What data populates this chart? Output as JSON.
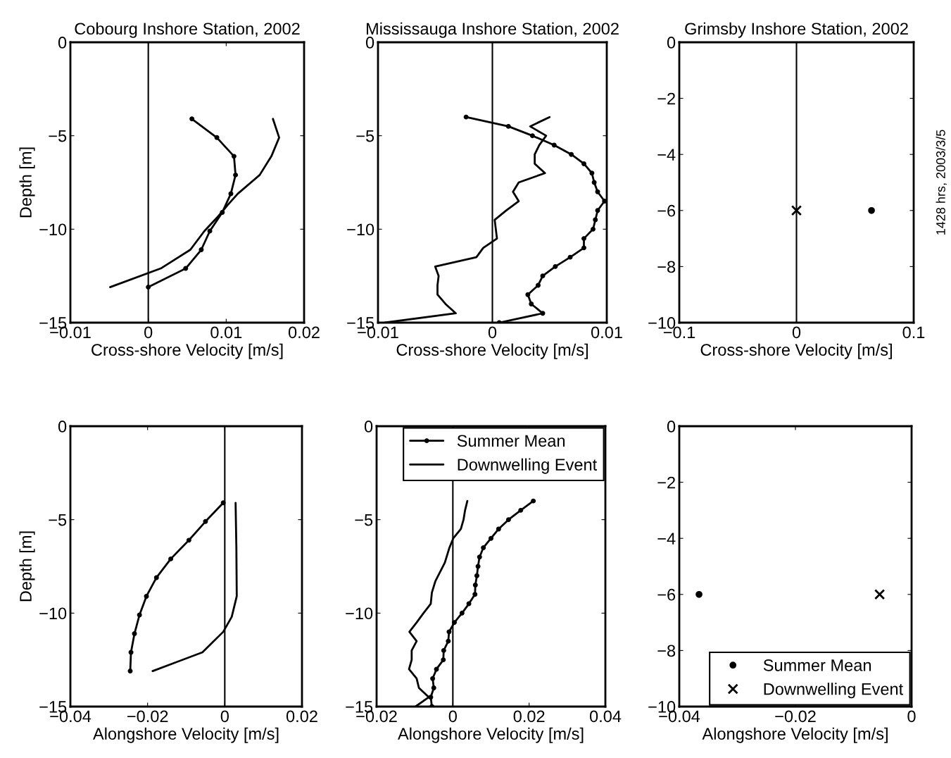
{
  "chart_data": [
    {
      "type": "line",
      "title": "Cobourg Inshore Station, 2002",
      "xlabel": "Cross-shore Velocity [m/s]",
      "ylabel": "Depth [m]",
      "xlim": [
        -0.01,
        0.02
      ],
      "xticks": [
        -0.01,
        0,
        0.01,
        0.02
      ],
      "ylim": [
        -15,
        0
      ],
      "yticks": [
        -15,
        -10,
        -5,
        0
      ],
      "ref_lines": [
        {
          "axis": "x",
          "value": 0,
          "color": "#000000"
        }
      ],
      "legend": false,
      "series": [
        {
          "color": "#000000",
          "marker": "circle",
          "x": [
            0.0056,
            0.0088,
            0.011,
            0.0112,
            0.0106,
            0.0095,
            0.0079,
            0.0068,
            0.0048,
            0.0
          ],
          "values": [
            -4.1,
            -5.1,
            -6.1,
            -7.1,
            -8.1,
            -9.1,
            -10.1,
            -11.1,
            -12.1,
            -13.1
          ]
        },
        {
          "color": "#000000",
          "marker": "none",
          "x": [
            0.016,
            0.0168,
            0.0158,
            0.0143,
            0.0115,
            0.0102,
            0.009,
            0.0072,
            0.0054,
            0.0016,
            -0.0049
          ],
          "values": [
            -4.1,
            -5.1,
            -6.1,
            -7.1,
            -8.1,
            -8.7,
            -9.3,
            -10.1,
            -11.1,
            -12.1,
            -13.1
          ]
        }
      ]
    },
    {
      "type": "line",
      "title": "Mississauga Inshore Station, 2002",
      "xlabel": "Cross-shore Velocity [m/s]",
      "xlim": [
        -0.01,
        0.01
      ],
      "xticks": [
        -0.01,
        0,
        0.01
      ],
      "ylim": [
        -15,
        0
      ],
      "yticks": [
        -15,
        -10,
        -5,
        0
      ],
      "ref_lines": [
        {
          "axis": "x",
          "value": 0,
          "color": "#000000"
        }
      ],
      "legend": false,
      "series": [
        {
          "color": "#000000",
          "marker": "circle",
          "x": [
            -0.0023,
            0.0014,
            0.0035,
            0.0054,
            0.0069,
            0.008,
            0.0087,
            0.0089,
            0.0092,
            0.0098,
            0.0092,
            0.009,
            0.0088,
            0.008,
            0.008,
            0.0068,
            0.0055,
            0.0044,
            0.004,
            0.0031,
            0.0034,
            0.0044,
            0.0006
          ],
          "values": [
            -4,
            -4.5,
            -5,
            -5.5,
            -6,
            -6.5,
            -7,
            -7.5,
            -8,
            -8.5,
            -9,
            -9.5,
            -10,
            -10.5,
            -11,
            -11.5,
            -12,
            -12.5,
            -13,
            -13.5,
            -14,
            -14.5,
            -15
          ]
        },
        {
          "color": "#000000",
          "marker": "none",
          "x": [
            0.005,
            0.0033,
            0.0047,
            0.0041,
            0.0037,
            0.0037,
            0.0046,
            0.0023,
            0.0018,
            0.0023,
            0.0012,
            0.0002,
            0.0003,
            0.0004,
            -0.0008,
            -0.0014,
            -0.005,
            -0.0047,
            -0.0048,
            -0.0048,
            -0.0041,
            -0.0032,
            -0.0094
          ],
          "values": [
            -4,
            -4.5,
            -5,
            -5.5,
            -6,
            -6.5,
            -7,
            -7.5,
            -8,
            -8.5,
            -9,
            -9.5,
            -10,
            -10.5,
            -11,
            -11.5,
            -12,
            -12.5,
            -13,
            -13.5,
            -14,
            -14.5,
            -15
          ]
        }
      ]
    },
    {
      "type": "scatter",
      "title": "Grimsby Inshore Station, 2002",
      "xlabel": "Cross-shore Velocity [m/s]",
      "xlim": [
        -0.1,
        0.1
      ],
      "xticks": [
        -0.1,
        0,
        0.1
      ],
      "ylim": [
        -10,
        0
      ],
      "yticks": [
        -10,
        -8,
        -6,
        -4,
        -2,
        0
      ],
      "ref_lines": [
        {
          "axis": "x",
          "value": 0,
          "color": "#000000"
        }
      ],
      "legend": false,
      "annotations": [
        "1428 hrs, 2003/3/5"
      ],
      "series": [
        {
          "color": "#000000",
          "marker": "circle",
          "x": [
            0.064
          ],
          "values": [
            -6
          ]
        },
        {
          "color": "#000000",
          "marker": "cross",
          "x": [
            0.0
          ],
          "values": [
            -6
          ]
        }
      ]
    },
    {
      "type": "line",
      "xlabel": "Alongshore Velocity [m/s]",
      "ylabel": "Depth [m]",
      "xlim": [
        -0.04,
        0.02
      ],
      "xticks": [
        -0.04,
        -0.02,
        0,
        0.02
      ],
      "ylim": [
        -15,
        0
      ],
      "yticks": [
        -15,
        -10,
        -5,
        0
      ],
      "ref_lines": [
        {
          "axis": "x",
          "value": 0,
          "color": "#000000"
        }
      ],
      "legend": false,
      "series": [
        {
          "color": "#000000",
          "marker": "circle",
          "x": [
            -0.0004,
            -0.005,
            -0.0093,
            -0.014,
            -0.0177,
            -0.0203,
            -0.0221,
            -0.0234,
            -0.0243,
            -0.0245
          ],
          "values": [
            -4.1,
            -5.1,
            -6.1,
            -7.1,
            -8.1,
            -9.1,
            -10.1,
            -11.1,
            -12.1,
            -13.1
          ]
        },
        {
          "color": "#000000",
          "marker": "none",
          "x": [
            0.0028,
            0.003,
            0.0031,
            0.0018,
            -0.0004,
            -0.0058,
            -0.0187
          ],
          "values": [
            -4.1,
            -6.5,
            -9.1,
            -10.2,
            -11.0,
            -12.1,
            -13.1
          ]
        }
      ]
    },
    {
      "type": "line",
      "xlabel": "Alongshore Velocity [m/s]",
      "xlim": [
        -0.02,
        0.04
      ],
      "xticks": [
        -0.02,
        0,
        0.02,
        0.04
      ],
      "ylim": [
        -15,
        0
      ],
      "yticks": [
        -15,
        -10,
        -5,
        0
      ],
      "ref_lines": [
        {
          "axis": "x",
          "value": 0,
          "color": "#000000"
        }
      ],
      "legend": "top right",
      "series": [
        {
          "name": "Summer Mean",
          "color": "#000000",
          "marker": "circle",
          "x": [
            0.0211,
            0.0178,
            0.0146,
            0.012,
            0.01,
            0.008,
            0.007,
            0.0066,
            0.0063,
            0.0059,
            0.0058,
            0.0042,
            0.0024,
            0.0004,
            -0.001,
            -0.0012,
            -0.0024,
            -0.0025,
            -0.0043,
            -0.0053,
            -0.005,
            -0.0058,
            -0.0055
          ],
          "values": [
            -4,
            -4.5,
            -5,
            -5.5,
            -6,
            -6.5,
            -7,
            -7.5,
            -8,
            -8.5,
            -9,
            -9.5,
            -10,
            -10.5,
            -11,
            -11.5,
            -12,
            -12.5,
            -13,
            -13.5,
            -14,
            -14.5,
            -15
          ]
        },
        {
          "name": "Downwelling Event",
          "color": "#000000",
          "marker": "none",
          "x": [
            0.0038,
            0.0032,
            0.0028,
            0.0021,
            0.0001,
            -0.0009,
            -0.0021,
            -0.0046,
            -0.0055,
            -0.0058,
            -0.0077,
            -0.0095,
            -0.0114,
            -0.0095,
            -0.0108,
            -0.0108,
            -0.0115,
            -0.0095,
            -0.0089,
            -0.0063,
            -0.0098
          ],
          "values": [
            -4,
            -4.5,
            -5,
            -5.5,
            -6,
            -6.5,
            -7.3,
            -8.3,
            -8.9,
            -9.5,
            -10,
            -10.5,
            -11,
            -11.5,
            -12,
            -12.5,
            -13,
            -13.5,
            -14,
            -14.5,
            -15
          ]
        }
      ]
    },
    {
      "type": "scatter",
      "xlabel": "Alongshore Velocity [m/s]",
      "xlim": [
        -0.04,
        0
      ],
      "xticks": [
        -0.04,
        -0.02,
        0
      ],
      "ylim": [
        -10,
        0
      ],
      "yticks": [
        -10,
        -8,
        -6,
        -4,
        -2,
        0
      ],
      "legend": "bottom right",
      "series": [
        {
          "name": "Summer Mean",
          "color": "#000000",
          "marker": "circle",
          "x": [
            -0.0366
          ],
          "values": [
            -6
          ]
        },
        {
          "name": "Downwelling Event",
          "color": "#000000",
          "marker": "cross",
          "x": [
            -0.0055
          ],
          "values": [
            -6
          ]
        }
      ]
    }
  ]
}
